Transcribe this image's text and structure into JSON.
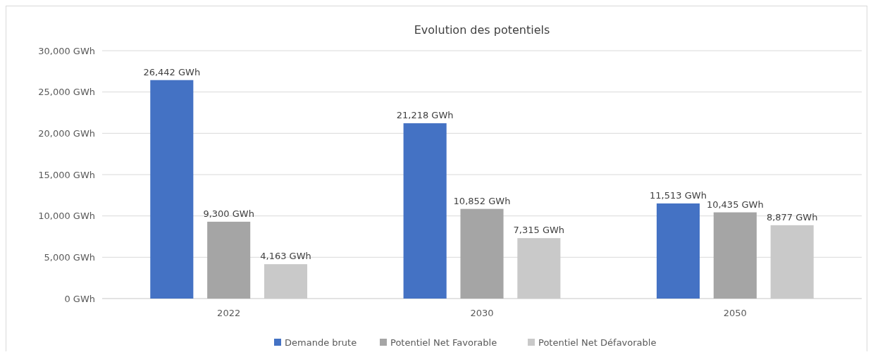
{
  "chart_data": {
    "type": "bar",
    "title": "Evolution des potentiels",
    "categories": [
      "2022",
      "2030",
      "2050"
    ],
    "series": [
      {
        "name": "Demande brute",
        "color": "#4472c4",
        "values": [
          26442,
          21218,
          11513
        ],
        "value_labels": [
          "26,442 GWh",
          "21,218 GWh",
          "11,513 GWh"
        ]
      },
      {
        "name": "Potentiel Net Favorable",
        "color": "#a5a5a5",
        "values": [
          9300,
          10852,
          10435
        ],
        "value_labels": [
          "9,300 GWh",
          "10,852 GWh",
          "10,435 GWh"
        ]
      },
      {
        "name": "Potentiel Net Défavorable",
        "color": "#c9c9c9",
        "values": [
          4163,
          7315,
          8877
        ],
        "value_labels": [
          "4,163 GWh",
          "7,315 GWh",
          "8,877 GWh"
        ]
      }
    ],
    "ylim": [
      0,
      30000
    ],
    "yticks": [
      {
        "value": 0,
        "label": "0 GWh"
      },
      {
        "value": 5000,
        "label": "5,000 GWh"
      },
      {
        "value": 10000,
        "label": "10,000 GWh"
      },
      {
        "value": 15000,
        "label": "15,000 GWh"
      },
      {
        "value": 20000,
        "label": "20,000 GWh"
      },
      {
        "value": 25000,
        "label": "25,000 GWh"
      },
      {
        "value": 30000,
        "label": "30,000 GWh"
      }
    ],
    "grid": "y",
    "legend": "bottom"
  }
}
